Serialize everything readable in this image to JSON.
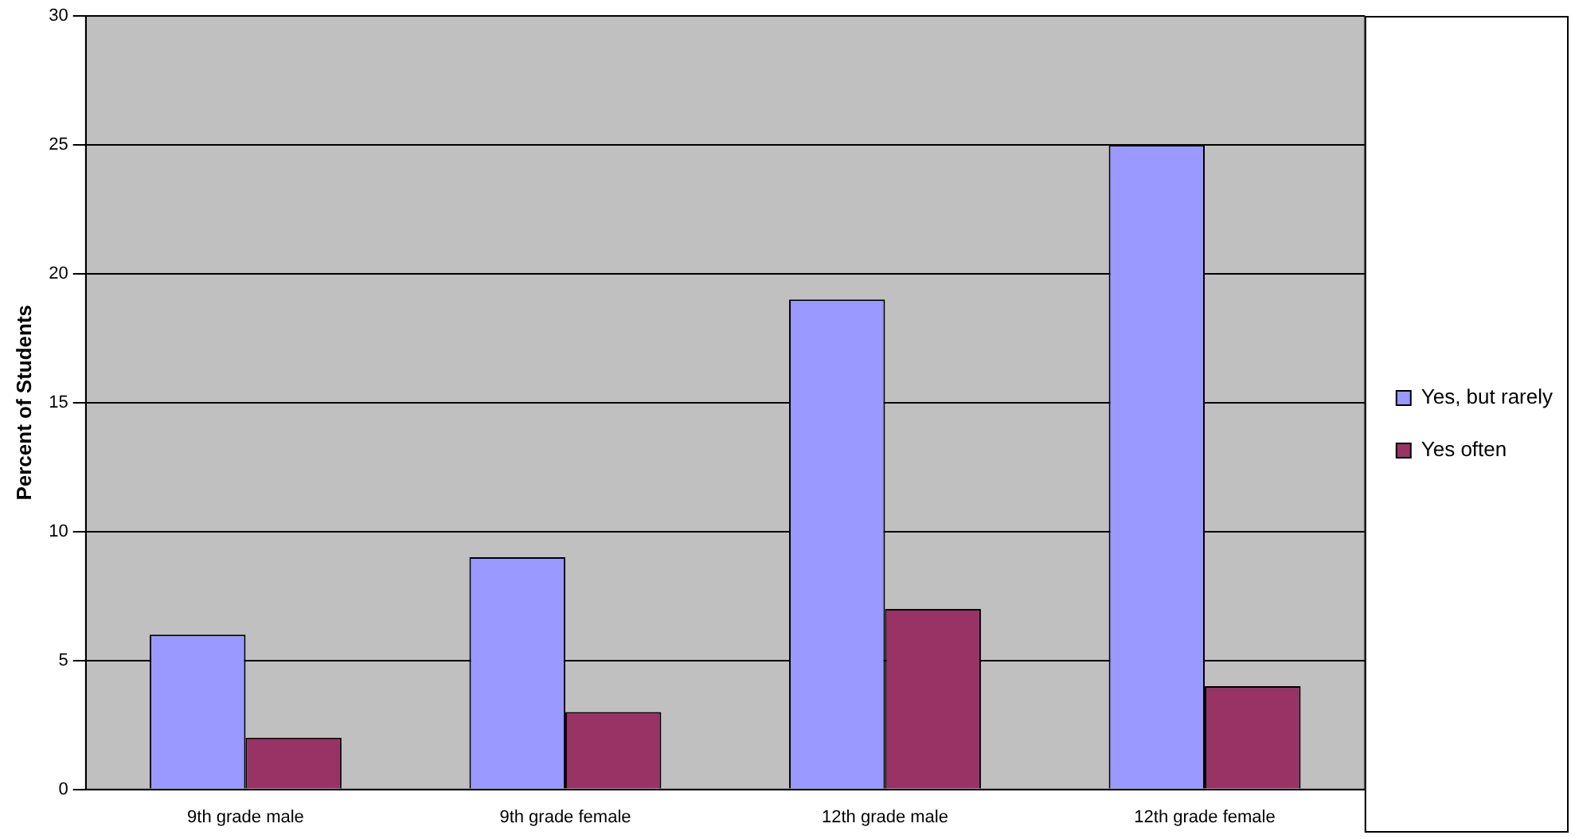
{
  "chart_data": {
    "type": "bar",
    "ylabel": "Percent of Students",
    "categories": [
      "9th grade male",
      "9th grade female",
      "12th grade male",
      "12th grade female"
    ],
    "series": [
      {
        "name": "Yes, but rarely",
        "color": "#9999ff",
        "values": [
          6,
          9,
          19,
          25
        ]
      },
      {
        "name": "Yes often",
        "color": "#993366",
        "values": [
          2,
          3,
          7,
          4
        ]
      }
    ],
    "ylim": [
      0,
      30
    ],
    "yticks": [
      0,
      5,
      10,
      15,
      20,
      25,
      30
    ],
    "grid": "y",
    "legend": "right"
  }
}
